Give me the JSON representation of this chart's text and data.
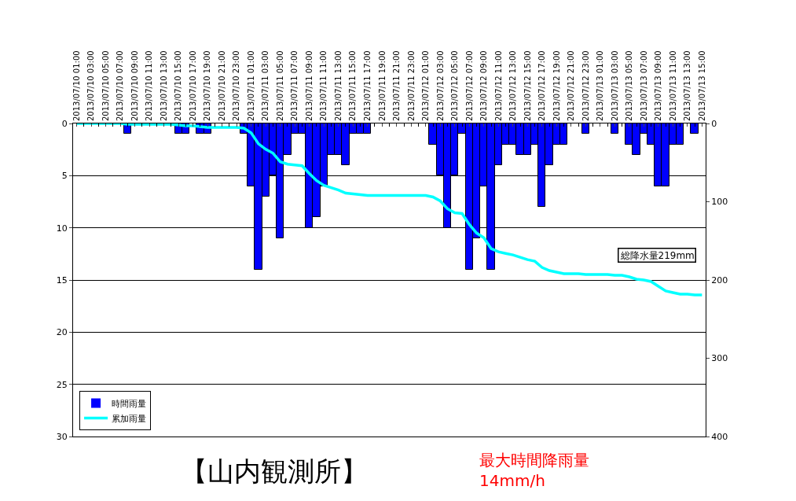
{
  "chart_data": {
    "type": "bar",
    "title": "【山内観測所】",
    "categories": [
      "2013/07/10 01:00",
      null,
      "2013/07/10 03:00",
      null,
      "2013/07/10 05:00",
      null,
      "2013/07/10 07:00",
      null,
      "2013/07/10 09:00",
      null,
      "2013/07/10 11:00",
      null,
      "2013/07/10 13:00",
      null,
      "2013/07/10 15:00",
      null,
      "2013/07/10 17:00",
      null,
      "2013/07/10 19:00",
      null,
      "2013/07/10 21:00",
      null,
      "2013/07/10 23:00",
      null,
      "2013/07/11 01:00",
      null,
      "2013/07/11 03:00",
      null,
      "2013/07/11 05:00",
      null,
      "2013/07/11 07:00",
      null,
      "2013/07/11 09:00",
      null,
      "2013/07/11 11:00",
      null,
      "2013/07/11 13:00",
      null,
      "2013/07/11 15:00",
      null,
      "2013/07/11 17:00",
      null,
      "2013/07/11 19:00",
      null,
      "2013/07/11 21:00",
      null,
      "2013/07/11 23:00",
      null,
      "2013/07/12 01:00",
      null,
      "2013/07/12 03:00",
      null,
      "2013/07/12 05:00",
      null,
      "2013/07/12 07:00",
      null,
      "2013/07/12 09:00",
      null,
      "2013/07/12 11:00",
      null,
      "2013/07/12 13:00",
      null,
      "2013/07/12 15:00",
      null,
      "2013/07/12 17:00",
      null,
      "2013/07/12 19:00",
      null,
      "2013/07/12 21:00",
      null,
      "2013/07/12 23:00",
      null,
      "2013/07/13 01:00",
      null,
      "2013/07/13 03:00",
      null,
      "2013/07/13 05:00",
      null,
      "2013/07/13 07:00",
      null,
      "2013/07/13 09:00",
      null,
      "2013/07/13 11:00",
      null,
      "2013/07/13 13:00",
      null,
      "2013/07/13 15:00"
    ],
    "series": [
      {
        "name": "時間雨量",
        "color": "#0000ff",
        "values": [
          0,
          0,
          0,
          0,
          0,
          0,
          0,
          1,
          0,
          0,
          0,
          0,
          0,
          0,
          1,
          1,
          0,
          1,
          1,
          0,
          0,
          0,
          0,
          1,
          6,
          14,
          7,
          5,
          11,
          3,
          1,
          1,
          10,
          9,
          6,
          3,
          3,
          4,
          1,
          1,
          1,
          0,
          0,
          0,
          0,
          0,
          0,
          0,
          0,
          2,
          5,
          10,
          5,
          1,
          14,
          11,
          6,
          14,
          4,
          2,
          2,
          3,
          3,
          2,
          8,
          4,
          2,
          2,
          0,
          0,
          1,
          0,
          0,
          0,
          1,
          0,
          2,
          3,
          1,
          2,
          6,
          6,
          2,
          2,
          0,
          1,
          0
        ]
      },
      {
        "name": "累加雨量",
        "type": "line",
        "axis": "y2",
        "color": "#00ffff",
        "values": [
          0,
          0,
          0,
          0,
          0,
          0,
          0,
          1,
          1,
          1,
          1,
          1,
          1,
          1,
          2,
          3,
          3,
          4,
          5,
          5,
          5,
          5,
          5,
          6,
          12,
          26,
          33,
          38,
          49,
          52,
          53,
          54,
          64,
          73,
          79,
          82,
          85,
          89,
          90,
          91,
          92,
          92,
          92,
          92,
          92,
          92,
          92,
          92,
          92,
          94,
          99,
          109,
          114,
          115,
          129,
          140,
          146,
          160,
          164,
          166,
          168,
          171,
          174,
          176,
          184,
          188,
          190,
          192,
          192,
          192,
          193,
          193,
          193,
          193,
          194,
          194,
          196,
          199,
          200,
          202,
          208,
          214,
          216,
          218,
          218,
          219,
          219
        ]
      }
    ],
    "ylim": [
      30,
      0
    ],
    "yticks": [
      0,
      5,
      10,
      15,
      20,
      25,
      30
    ],
    "y2lim": [
      400,
      0
    ],
    "y2ticks": [
      0,
      100,
      200,
      300,
      400
    ],
    "grid": "y",
    "legend": "bottom left",
    "marker": "none",
    "annotations": [
      "総降水量219mm",
      "最大時間降雨量\n14mm/h"
    ]
  }
}
